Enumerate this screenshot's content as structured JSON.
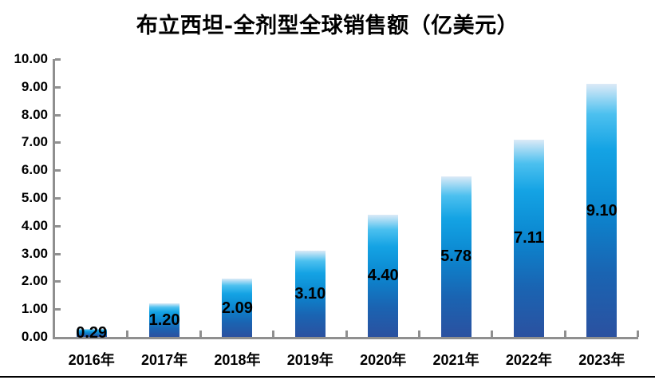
{
  "window": {
    "background": "#ffffff"
  },
  "chart_data": {
    "type": "bar",
    "title": "布立西坦-全剂型全球销售额（亿美元）",
    "categories": [
      "2016年",
      "2017年",
      "2018年",
      "2019年",
      "2020年",
      "2021年",
      "2022年",
      "2023年"
    ],
    "values": [
      0.29,
      1.2,
      2.09,
      3.1,
      4.4,
      5.78,
      7.11,
      9.1
    ],
    "bar_labels": [
      "0.29",
      "1.20",
      "2.09",
      "3.10",
      "4.40",
      "5.78",
      "7.11",
      "9.10"
    ],
    "xlabel": "",
    "ylabel": "",
    "ylim": [
      0,
      10
    ],
    "ytick_labels": [
      "0.00",
      "1.00",
      "2.00",
      "3.00",
      "4.00",
      "5.00",
      "6.00",
      "7.00",
      "8.00",
      "9.00",
      "10.00"
    ],
    "grid": false,
    "legend": "none",
    "styles": {
      "bar_gradient_stops": [
        {
          "color": "#dceaf7",
          "pos": 0
        },
        {
          "color": "#4cc0ef",
          "pos": 12
        },
        {
          "color": "#14a3e4",
          "pos": 26
        },
        {
          "color": "#0b86cf",
          "pos": 50
        },
        {
          "color": "#1a64b2",
          "pos": 75
        },
        {
          "color": "#2b51a0",
          "pos": 100
        }
      ],
      "axis_color": "#8f8f8f",
      "text_color": "#000000",
      "bottom_rule_color": "#000000"
    }
  }
}
